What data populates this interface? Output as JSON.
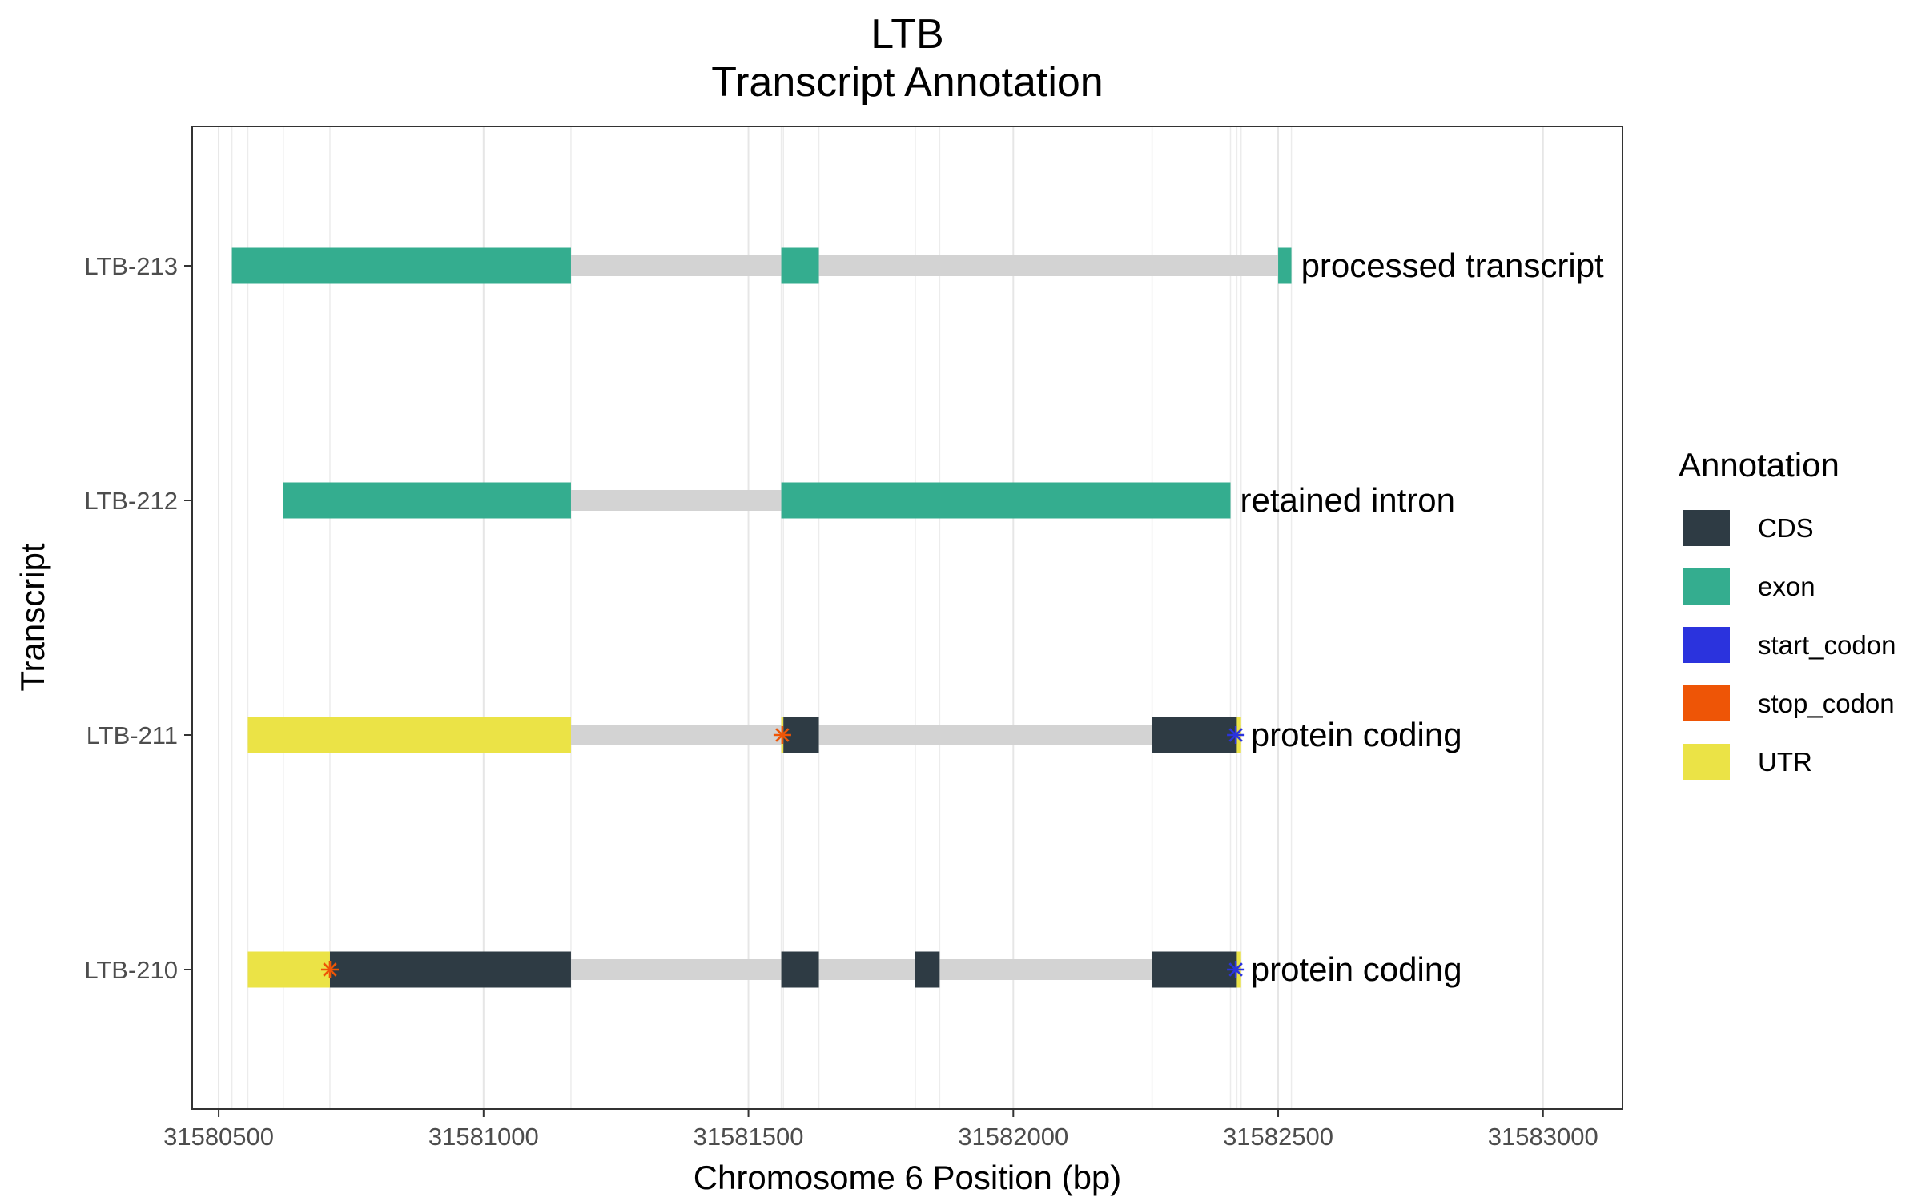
{
  "chart_data": {
    "type": "bar",
    "title": "LTB",
    "subtitle": "Transcript Annotation",
    "xlabel": "Chromosome 6 Position (bp)",
    "ylabel": "Transcript",
    "xlim": [
      31580450,
      31583150
    ],
    "xticks": [
      31580500,
      31581000,
      31581500,
      31582000,
      31582500,
      31583000
    ],
    "xtick_labels": [
      "31580500",
      "31581000",
      "31581500",
      "31582000",
      "31582500",
      "31583000"
    ],
    "grid": true,
    "legend_position": "right",
    "legend": {
      "title": "Annotation",
      "entries": [
        {
          "key": "CDS",
          "label": "CDS",
          "color": "#2e3b44"
        },
        {
          "key": "exon",
          "label": "exon",
          "color": "#34ad8f"
        },
        {
          "key": "start_codon",
          "label": "start_codon",
          "color": "#2b33dd"
        },
        {
          "key": "stop_codon",
          "label": "stop_codon",
          "color": "#ee5506"
        },
        {
          "key": "UTR",
          "label": "UTR",
          "color": "#ebe346"
        }
      ]
    },
    "intron_color": "#d3d3d3",
    "transcripts": [
      {
        "name": "LTB-213",
        "biotype": "processed transcript",
        "start": 31580525,
        "end": 31582525,
        "features": [
          {
            "type": "exon",
            "start": 31580525,
            "end": 31581165
          },
          {
            "type": "exon",
            "start": 31581562,
            "end": 31581633
          },
          {
            "type": "exon",
            "start": 31582500,
            "end": 31582525
          }
        ],
        "codons": []
      },
      {
        "name": "LTB-212",
        "biotype": "retained intron",
        "start": 31580622,
        "end": 31582410,
        "features": [
          {
            "type": "exon",
            "start": 31580622,
            "end": 31581165
          },
          {
            "type": "exon",
            "start": 31581562,
            "end": 31582410
          }
        ],
        "codons": []
      },
      {
        "name": "LTB-211",
        "biotype": "protein coding",
        "start": 31580555,
        "end": 31582430,
        "features": [
          {
            "type": "UTR",
            "start": 31580555,
            "end": 31581165
          },
          {
            "type": "UTR",
            "start": 31581562,
            "end": 31581566
          },
          {
            "type": "CDS",
            "start": 31581566,
            "end": 31581633
          },
          {
            "type": "CDS",
            "start": 31582262,
            "end": 31582422
          },
          {
            "type": "UTR",
            "start": 31582422,
            "end": 31582430
          }
        ],
        "codons": [
          {
            "type": "stop_codon",
            "pos": 31581564
          },
          {
            "type": "start_codon",
            "pos": 31582420
          }
        ]
      },
      {
        "name": "LTB-210",
        "biotype": "protein coding",
        "start": 31580555,
        "end": 31582430,
        "features": [
          {
            "type": "UTR",
            "start": 31580555,
            "end": 31580710
          },
          {
            "type": "CDS",
            "start": 31580710,
            "end": 31581165
          },
          {
            "type": "CDS",
            "start": 31581562,
            "end": 31581633
          },
          {
            "type": "CDS",
            "start": 31581815,
            "end": 31581861
          },
          {
            "type": "CDS",
            "start": 31582262,
            "end": 31582422
          },
          {
            "type": "UTR",
            "start": 31582422,
            "end": 31582430
          }
        ],
        "codons": [
          {
            "type": "stop_codon",
            "pos": 31580710
          },
          {
            "type": "start_codon",
            "pos": 31582420
          }
        ]
      }
    ]
  }
}
